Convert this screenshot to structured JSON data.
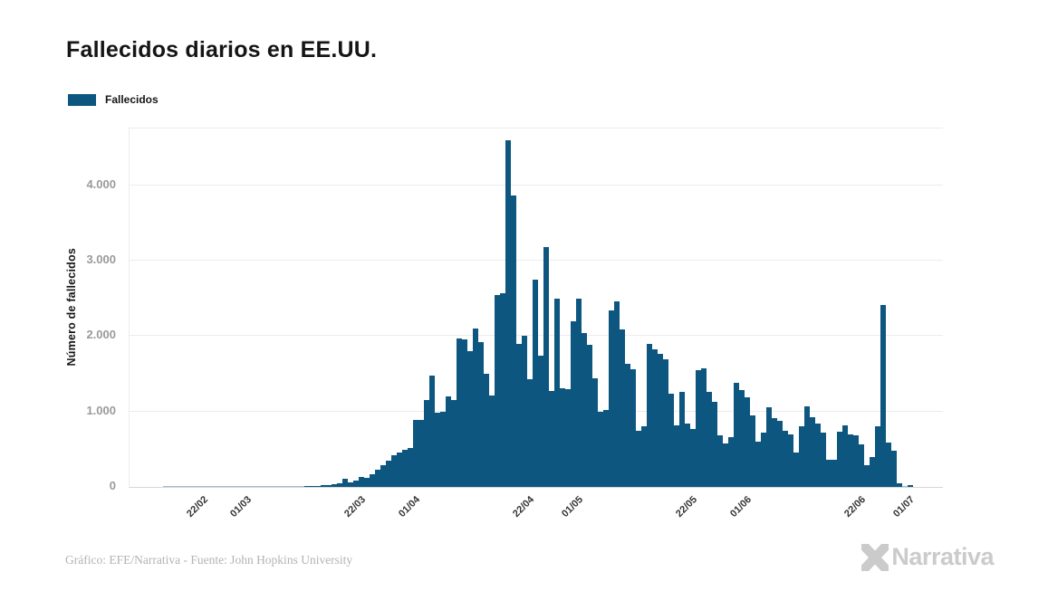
{
  "header": {
    "title": "Fallecidos diarios en EE.UU."
  },
  "legend": {
    "label": "Fallecidos",
    "swatch_color": "#0D567F"
  },
  "chart_data": {
    "type": "bar",
    "title": "Fallecidos diarios en EE.UU.",
    "series_name": "Fallecidos",
    "ylabel": "Número de fallecidos",
    "ylim": [
      0,
      4750
    ],
    "grid": "horizontal",
    "bar_color": "#0D567F",
    "legend_position": "top-left",
    "y_ticks": [
      {
        "value": 0,
        "label": "0"
      },
      {
        "value": 1000,
        "label": "1.000"
      },
      {
        "value": 2000,
        "label": "2.000"
      },
      {
        "value": 3000,
        "label": "3.000"
      },
      {
        "value": 4000,
        "label": "4.000"
      }
    ],
    "x_ticks": [
      {
        "index": 12,
        "label": "22/02"
      },
      {
        "index": 20,
        "label": "01/03"
      },
      {
        "index": 41,
        "label": "22/03"
      },
      {
        "index": 51,
        "label": "01/04"
      },
      {
        "index": 72,
        "label": "22/04"
      },
      {
        "index": 81,
        "label": "01/05"
      },
      {
        "index": 102,
        "label": "22/05"
      },
      {
        "index": 112,
        "label": "01/06"
      },
      {
        "index": 133,
        "label": "22/06"
      },
      {
        "index": 142,
        "label": "01/07"
      }
    ],
    "dates": [
      "10/02",
      "11/02",
      "12/02",
      "13/02",
      "14/02",
      "15/02",
      "16/02",
      "17/02",
      "18/02",
      "19/02",
      "20/02",
      "21/02",
      "22/02",
      "23/02",
      "24/02",
      "25/02",
      "26/02",
      "27/02",
      "28/02",
      "29/02",
      "01/03",
      "02/03",
      "03/03",
      "04/03",
      "05/03",
      "06/03",
      "07/03",
      "08/03",
      "09/03",
      "10/03",
      "11/03",
      "12/03",
      "13/03",
      "14/03",
      "15/03",
      "16/03",
      "17/03",
      "18/03",
      "19/03",
      "20/03",
      "21/03",
      "22/03",
      "23/03",
      "24/03",
      "25/03",
      "26/03",
      "27/03",
      "28/03",
      "29/03",
      "30/03",
      "31/03",
      "01/04",
      "02/04",
      "03/04",
      "04/04",
      "05/04",
      "06/04",
      "07/04",
      "08/04",
      "09/04",
      "10/04",
      "11/04",
      "12/04",
      "13/04",
      "14/04",
      "15/04",
      "16/04",
      "17/04",
      "18/04",
      "19/04",
      "20/04",
      "21/04",
      "22/04",
      "23/04",
      "24/04",
      "25/04",
      "26/04",
      "27/04",
      "28/04",
      "29/04",
      "30/04",
      "01/05",
      "02/05",
      "03/05",
      "04/05",
      "05/05",
      "06/05",
      "07/05",
      "08/05",
      "09/05",
      "10/05",
      "11/05",
      "12/05",
      "13/05",
      "14/05",
      "15/05",
      "16/05",
      "17/05",
      "18/05",
      "19/05",
      "20/05",
      "21/05",
      "22/05",
      "23/05",
      "24/05",
      "25/05",
      "26/05",
      "27/05",
      "28/05",
      "29/05",
      "30/05",
      "31/05",
      "01/06",
      "02/06",
      "03/06",
      "04/06",
      "05/06",
      "06/06",
      "07/06",
      "08/06",
      "09/06",
      "10/06",
      "11/06",
      "12/06",
      "13/06",
      "14/06",
      "15/06",
      "16/06",
      "17/06",
      "18/06",
      "19/06",
      "20/06",
      "21/06",
      "22/06",
      "23/06",
      "24/06",
      "25/06",
      "26/06",
      "27/06",
      "28/06",
      "29/06",
      "30/06",
      "01/07"
    ],
    "values": [
      0,
      0,
      0,
      0,
      0,
      1,
      1,
      1,
      1,
      1,
      1,
      1,
      1,
      1,
      1,
      1,
      1,
      1,
      1,
      2,
      2,
      4,
      4,
      3,
      4,
      5,
      5,
      6,
      7,
      9,
      10,
      12,
      14,
      17,
      20,
      26,
      34,
      46,
      105,
      65,
      85,
      130,
      125,
      165,
      225,
      285,
      345,
      415,
      455,
      495,
      510,
      885,
      890,
      1150,
      1470,
      985,
      1000,
      1200,
      1155,
      1965,
      1955,
      1800,
      2100,
      1915,
      1500,
      1210,
      2545,
      2570,
      4600,
      3860,
      1890,
      2000,
      1425,
      2750,
      1740,
      3175,
      1270,
      2500,
      1310,
      1300,
      2200,
      2490,
      2040,
      1885,
      1435,
      1000,
      1015,
      2340,
      2460,
      2090,
      1630,
      1560,
      745,
      805,
      1900,
      1820,
      1760,
      1690,
      1230,
      815,
      1260,
      842,
      770,
      1552,
      1568,
      1261,
      1129,
      682,
      570,
      662,
      1381,
      1289,
      1193,
      942,
      595,
      722,
      1055,
      910,
      875,
      740,
      690,
      455,
      800,
      1065,
      925,
      840,
      720,
      360,
      365,
      730,
      820,
      690,
      680,
      560,
      290,
      400,
      805,
      2410,
      590,
      480,
      45,
      10,
      30
    ]
  },
  "footer": {
    "credit": "Gráfico: EFE/Narrativa - Fuente: John Hopkins University",
    "logo_text": "Narrativa"
  },
  "colors": {
    "bar": "#0D567F",
    "gridline": "#ececec",
    "axis_line": "#d6d6d6",
    "y_tick_text": "#9a9a9a",
    "x_tick_text": "#333333",
    "title_text": "#151515",
    "credit_text": "#b3b3b3",
    "logo": "#cbcbcb"
  }
}
